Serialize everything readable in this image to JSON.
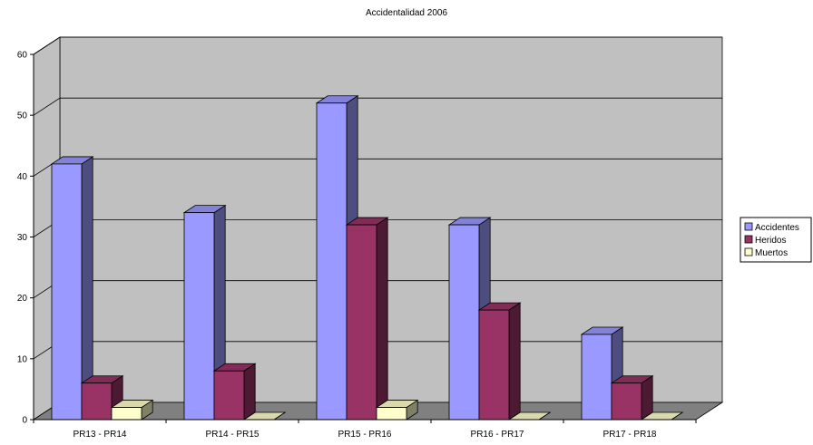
{
  "chart_data": {
    "type": "bar",
    "title": "Accidentalidad 2006",
    "xlabel": "",
    "ylabel": "",
    "categories": [
      "PR13 - PR14",
      "PR14 - PR15",
      "PR15 - PR16",
      "PR16 - PR17",
      "PR17 - PR18"
    ],
    "series": [
      {
        "name": "Accidentes",
        "values": [
          42,
          34,
          52,
          32,
          14
        ],
        "color": "#9999ff"
      },
      {
        "name": "Heridos",
        "values": [
          6,
          8,
          32,
          18,
          6
        ],
        "color": "#993366"
      },
      {
        "name": "Muertos",
        "values": [
          2,
          0,
          2,
          0,
          0
        ],
        "color": "#ffffcc"
      }
    ],
    "ylim": [
      0,
      60
    ],
    "yticks": [
      "0",
      "10",
      "20",
      "30",
      "40",
      "50",
      "60"
    ],
    "grid": true,
    "legend": "right",
    "style": "3d-clustered-column",
    "wall_color": "#c0c0c0",
    "floor_color": "#808080"
  }
}
